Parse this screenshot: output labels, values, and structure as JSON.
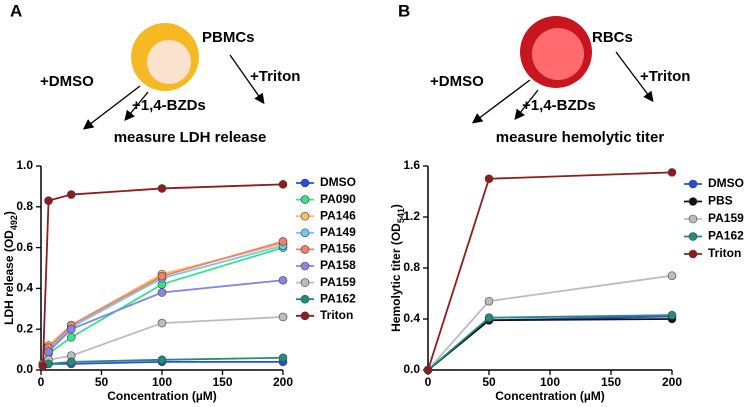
{
  "chart_data": [
    {
      "type": "line",
      "panel": "A",
      "cell_label": "PBMCs",
      "treatments": [
        "+DMSO",
        "+1,4-BZDs",
        "+Triton"
      ],
      "caption": "measure LDH release",
      "xlabel": "Concentration (µM)",
      "ylabel": [
        "LDH release (OD",
        "492",
        ")"
      ],
      "x": [
        1.56,
        6.25,
        25,
        100,
        200
      ],
      "xlim": [
        0,
        200
      ],
      "xticks": [
        0,
        50,
        100,
        150,
        200
      ],
      "ylim": [
        0,
        1
      ],
      "yticks": [
        {
          "value": 0,
          "label": "0.0"
        },
        0.2,
        0.4,
        0.6,
        0.8,
        {
          "value": 1,
          "label": "1.0"
        }
      ],
      "series": [
        {
          "name": "DMSO",
          "color": "#2a4bdc",
          "values": [
            0.02,
            0.03,
            0.03,
            0.04,
            0.04
          ]
        },
        {
          "name": "PA090",
          "color": "#3be08c",
          "values": [
            0.03,
            0.08,
            0.16,
            0.42,
            0.6
          ]
        },
        {
          "name": "PA146",
          "color": "#f6bd62",
          "values": [
            0.03,
            0.12,
            0.22,
            0.47,
            0.62
          ]
        },
        {
          "name": "PA149",
          "color": "#73c8f0",
          "values": [
            0.03,
            0.1,
            0.21,
            0.45,
            0.61
          ]
        },
        {
          "name": "PA156",
          "color": "#f27e6c",
          "values": [
            0.03,
            0.11,
            0.22,
            0.46,
            0.63
          ]
        },
        {
          "name": "PA158",
          "color": "#8585e2",
          "values": [
            0.03,
            0.09,
            0.2,
            0.38,
            0.44
          ]
        },
        {
          "name": "PA159",
          "color": "#bcbcbc",
          "values": [
            0.02,
            0.05,
            0.07,
            0.23,
            0.26
          ]
        },
        {
          "name": "PA162",
          "color": "#1f8c7c",
          "values": [
            0.02,
            0.03,
            0.04,
            0.05,
            0.06
          ]
        },
        {
          "name": "Triton",
          "color": "#8e1c1c",
          "values": [
            0.02,
            0.83,
            0.86,
            0.89,
            0.91
          ]
        }
      ]
    },
    {
      "type": "line",
      "panel": "B",
      "cell_label": "RBCs",
      "treatments": [
        "+DMSO",
        "+1,4-BZDs",
        "+Triton"
      ],
      "caption": "measure hemolytic titer",
      "xlabel": "Concentration (µM)",
      "ylabel": [
        "Hemolytic titer (OD",
        "541",
        ")"
      ],
      "x": [
        0,
        50,
        200
      ],
      "xlim": [
        0,
        200
      ],
      "xticks": [
        0,
        50,
        100,
        150,
        200
      ],
      "ylim": [
        0,
        1.6
      ],
      "yticks": [
        {
          "value": 0,
          "label": "0.0"
        },
        0.4,
        0.8,
        1.2,
        1.6
      ],
      "series": [
        {
          "name": "DMSO",
          "color": "#2a4bdc",
          "values": [
            0,
            0.39,
            0.42
          ]
        },
        {
          "name": "PBS",
          "color": "#111111",
          "values": [
            0,
            0.39,
            0.4
          ]
        },
        {
          "name": "PA159",
          "color": "#bcbcbc",
          "values": [
            0,
            0.54,
            0.74
          ]
        },
        {
          "name": "PA162",
          "color": "#1f8c7c",
          "values": [
            0,
            0.41,
            0.43
          ]
        },
        {
          "name": "Triton",
          "color": "#8e1c1c",
          "values": [
            0,
            1.5,
            1.55
          ]
        }
      ]
    }
  ]
}
